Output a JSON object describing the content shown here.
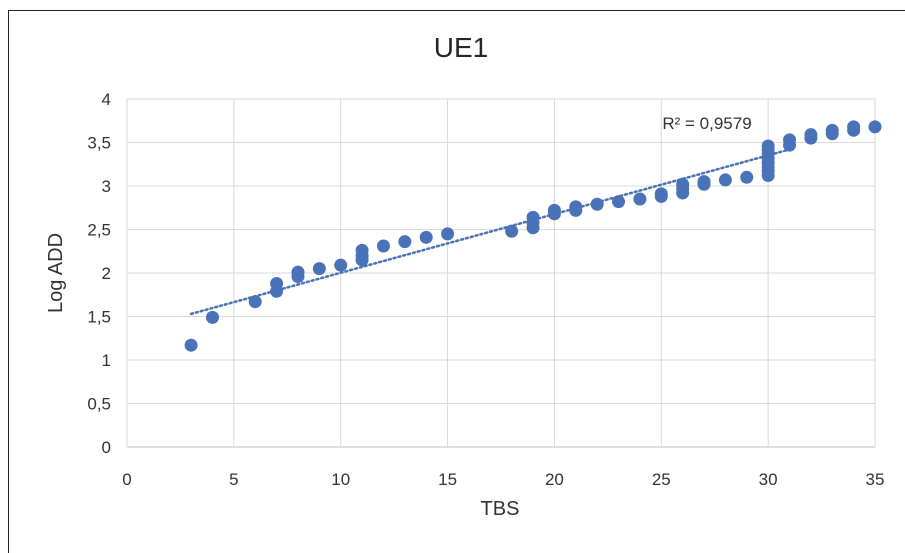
{
  "chart_data": {
    "type": "scatter",
    "title": "UE1",
    "xlabel": "TBS",
    "ylabel": "Log ADD",
    "xlim": [
      0,
      35
    ],
    "ylim": [
      0,
      4
    ],
    "x_ticks": [
      "0",
      "5",
      "10",
      "15",
      "20",
      "25",
      "30",
      "35"
    ],
    "y_ticks": [
      "0",
      "0,5",
      "1",
      "1,5",
      "2",
      "2,5",
      "3",
      "3,5",
      "4"
    ],
    "grid": true,
    "legend": "none",
    "series": [
      {
        "color": "#4a72b8",
        "points": [
          [
            3,
            1.17
          ],
          [
            4,
            1.49
          ],
          [
            6,
            1.67
          ],
          [
            7,
            1.79
          ],
          [
            7,
            1.88
          ],
          [
            8,
            1.96
          ],
          [
            8,
            2.01
          ],
          [
            9,
            2.05
          ],
          [
            10,
            2.09
          ],
          [
            11,
            2.15
          ],
          [
            11,
            2.2
          ],
          [
            11,
            2.26
          ],
          [
            12,
            2.31
          ],
          [
            13,
            2.36
          ],
          [
            14,
            2.41
          ],
          [
            15,
            2.45
          ],
          [
            18,
            2.48
          ],
          [
            19,
            2.52
          ],
          [
            19,
            2.58
          ],
          [
            19,
            2.64
          ],
          [
            20,
            2.68
          ],
          [
            20,
            2.72
          ],
          [
            21,
            2.72
          ],
          [
            21,
            2.76
          ],
          [
            22,
            2.79
          ],
          [
            23,
            2.82
          ],
          [
            24,
            2.85
          ],
          [
            25,
            2.88
          ],
          [
            25,
            2.91
          ],
          [
            26,
            2.92
          ],
          [
            26,
            2.97
          ],
          [
            26,
            3.02
          ],
          [
            27,
            3.02
          ],
          [
            27,
            3.05
          ],
          [
            28,
            3.07
          ],
          [
            29,
            3.1
          ],
          [
            30,
            3.12
          ],
          [
            30,
            3.17
          ],
          [
            30,
            3.22
          ],
          [
            30,
            3.27
          ],
          [
            30,
            3.32
          ],
          [
            30,
            3.37
          ],
          [
            30,
            3.42
          ],
          [
            30,
            3.46
          ],
          [
            31,
            3.47
          ],
          [
            31,
            3.53
          ],
          [
            32,
            3.55
          ],
          [
            32,
            3.59
          ],
          [
            33,
            3.6
          ],
          [
            33,
            3.64
          ],
          [
            34,
            3.64
          ],
          [
            34,
            3.68
          ],
          [
            35,
            3.68
          ]
        ]
      }
    ],
    "trendline": {
      "style": "dotted",
      "color": "#4a72b8",
      "x_range": [
        3,
        31
      ],
      "start_y": 1.53,
      "end_y": 3.42,
      "label": "R² = 0,9579"
    }
  }
}
